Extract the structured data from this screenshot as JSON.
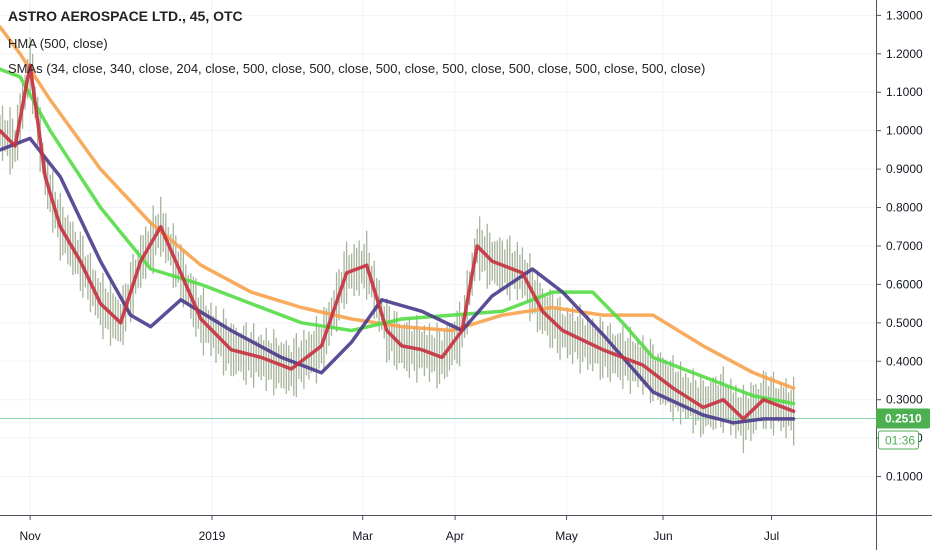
{
  "chart_data": {
    "type": "line",
    "title": "ASTRO AEROSPACE LTD., 45, OTC",
    "indicators": [
      "HMA (500, close)",
      "SMAs (34, close, 340, close, 204, close, 500, close, 500, close, 500, close, 500, close, 500, close, 500, close, 500, close)"
    ],
    "x_ticks": [
      "Nov",
      "2019",
      "Mar",
      "Apr",
      "May",
      "Jun",
      "Jul"
    ],
    "x_tick_days": [
      30,
      211,
      361,
      453,
      564,
      660,
      768
    ],
    "x_range_days": [
      0,
      872
    ],
    "y_ticks": [
      "0.1000",
      "0.2000",
      "0.3000",
      "0.4000",
      "0.5000",
      "0.6000",
      "0.7000",
      "0.8000",
      "0.9000",
      "1.0000",
      "1.1000",
      "1.2000",
      "1.3000"
    ],
    "ylim": [
      0.0,
      1.34
    ],
    "grid": true,
    "price_line": 0.251,
    "price_label": "0.2510",
    "countdown_label": "01:36",
    "colors": {
      "background": "#ffffff",
      "grid": "#f0f3fa",
      "price_label_bg": "#4caf50",
      "price_line": "#86d3a8",
      "candles": "#8a9a7a"
    },
    "series": [
      {
        "color": "#f7a24b",
        "x": [
          0,
          20,
          50,
          100,
          150,
          200,
          250,
          300,
          350,
          400,
          450,
          500,
          550,
          600,
          650,
          700,
          750,
          790
        ],
        "y": [
          1.27,
          1.2,
          1.08,
          0.9,
          0.76,
          0.65,
          0.58,
          0.54,
          0.51,
          0.49,
          0.48,
          0.52,
          0.54,
          0.52,
          0.52,
          0.44,
          0.37,
          0.33
        ]
      },
      {
        "color": "#53dc45",
        "x": [
          0,
          20,
          50,
          100,
          150,
          200,
          250,
          300,
          350,
          400,
          450,
          500,
          550,
          590,
          620,
          650,
          700,
          750,
          790
        ],
        "y": [
          1.16,
          1.14,
          1.0,
          0.8,
          0.64,
          0.6,
          0.55,
          0.5,
          0.48,
          0.51,
          0.52,
          0.53,
          0.58,
          0.58,
          0.5,
          0.41,
          0.36,
          0.31,
          0.29
        ]
      },
      {
        "color": "#4a3a8c",
        "x": [
          0,
          30,
          60,
          100,
          130,
          150,
          180,
          230,
          280,
          320,
          350,
          380,
          420,
          460,
          490,
          530,
          560,
          600,
          650,
          700,
          730,
          760,
          790
        ],
        "y": [
          0.95,
          0.98,
          0.88,
          0.66,
          0.52,
          0.49,
          0.56,
          0.48,
          0.41,
          0.37,
          0.45,
          0.56,
          0.53,
          0.48,
          0.57,
          0.64,
          0.58,
          0.47,
          0.32,
          0.26,
          0.24,
          0.25,
          0.25
        ]
      },
      {
        "color": "#c6303e",
        "x": [
          0,
          15,
          30,
          45,
          60,
          80,
          100,
          120,
          140,
          160,
          180,
          200,
          230,
          260,
          290,
          320,
          345,
          365,
          385,
          400,
          420,
          440,
          460,
          475,
          490,
          520,
          540,
          560,
          600,
          640,
          670,
          700,
          720,
          740,
          760,
          790
        ],
        "y": [
          1.0,
          0.96,
          1.17,
          0.88,
          0.75,
          0.66,
          0.55,
          0.5,
          0.66,
          0.75,
          0.63,
          0.51,
          0.43,
          0.41,
          0.38,
          0.44,
          0.63,
          0.65,
          0.48,
          0.44,
          0.43,
          0.41,
          0.48,
          0.7,
          0.66,
          0.63,
          0.53,
          0.48,
          0.43,
          0.39,
          0.33,
          0.28,
          0.3,
          0.25,
          0.3,
          0.27
        ]
      }
    ]
  }
}
